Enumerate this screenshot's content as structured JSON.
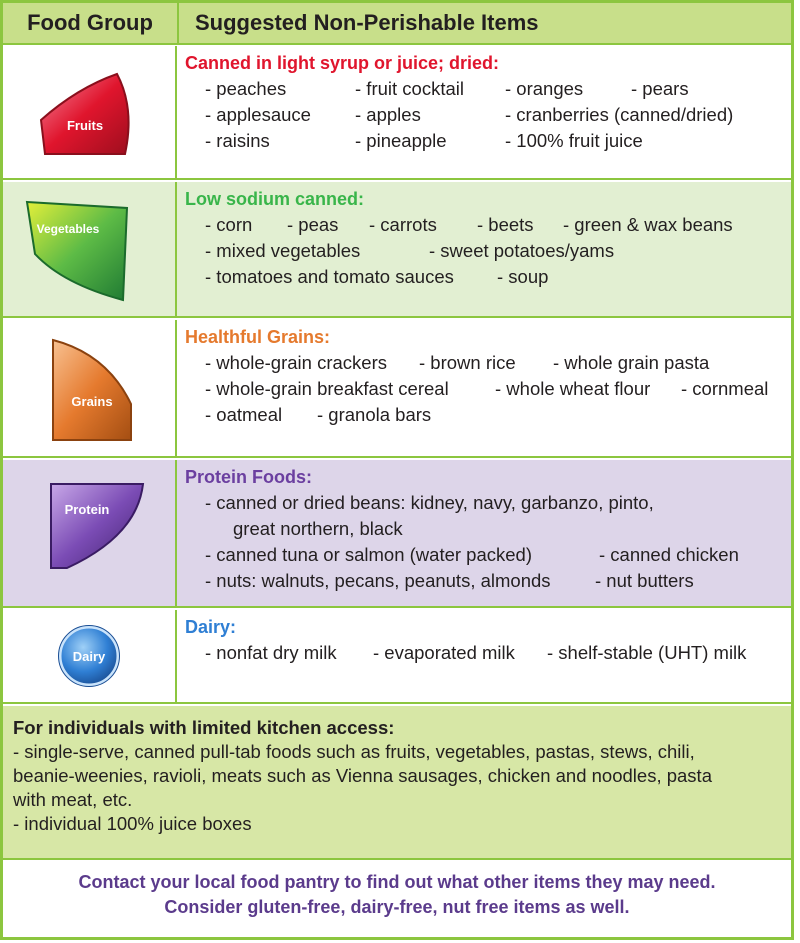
{
  "header": {
    "col1": "Food Group",
    "col2": "Suggested Non-Perishable Items"
  },
  "colors": {
    "border": "#8cc63f",
    "header_bg": "#c8df8a",
    "fruits": "#e0152d",
    "vegetables": "#39b54a",
    "grains": "#e57a2e",
    "protein": "#6b3fa0",
    "dairy": "#2f7fd4",
    "contact": "#5b3b8c"
  },
  "groups": [
    {
      "id": "fruits",
      "icon_label": "Fruits",
      "icon": "fruits-icon",
      "title": "Canned in light syrup or juice; dried:",
      "lines": [
        [
          "- peaches",
          "- fruit cocktail",
          "- oranges",
          "- pears"
        ],
        [
          "- applesauce",
          "- apples",
          "- cranberries (canned/dried)"
        ],
        [
          "- raisins",
          "- pineapple",
          "- 100% fruit juice"
        ]
      ]
    },
    {
      "id": "vegetables",
      "icon_label": "Vegetables",
      "icon": "vegetables-icon",
      "title": "Low sodium canned:",
      "lines": [
        [
          "- corn",
          "- peas",
          "- carrots",
          "- beets",
          "- green & wax beans"
        ],
        [
          "- mixed vegetables",
          "- sweet potatoes/yams"
        ],
        [
          "- tomatoes and tomato sauces",
          "- soup"
        ]
      ]
    },
    {
      "id": "grains",
      "icon_label": "Grains",
      "icon": "grains-icon",
      "title": "Healthful Grains:",
      "lines": [
        [
          "- whole-grain crackers",
          "- brown rice",
          "- whole grain pasta"
        ],
        [
          "- whole-grain breakfast cereal",
          "- whole wheat flour",
          "- cornmeal"
        ],
        [
          "- oatmeal",
          "- granola bars"
        ]
      ]
    },
    {
      "id": "protein",
      "icon_label": "Protein",
      "icon": "protein-icon",
      "title": "Protein Foods:",
      "lines": [
        [
          "- canned or dried beans:  kidney, navy, garbanzo, pinto,"
        ],
        [
          "great northern, black"
        ],
        [
          "- canned tuna or salmon (water packed)",
          "- canned chicken"
        ],
        [
          "- nuts:  walnuts, pecans, peanuts, almonds",
          "- nut butters"
        ]
      ]
    },
    {
      "id": "dairy",
      "icon_label": "Dairy",
      "icon": "dairy-icon",
      "title": "Dairy:",
      "lines": [
        [
          "- nonfat dry milk",
          "- evaporated milk",
          "- shelf-stable (UHT) milk"
        ]
      ]
    }
  ],
  "limited": {
    "title": "For individuals with limited kitchen access:",
    "lines": [
      "- single-serve, canned pull-tab foods such as fruits, vegetables, pastas, stews, chili,",
      "beanie-weenies, ravioli, meats such as Vienna sausages, chicken and noodles, pasta",
      "with meat, etc.",
      "- individual 100% juice boxes"
    ]
  },
  "contact": {
    "line1": "Contact your local food pantry to find out what other items they may need.",
    "line2": "Consider gluten-free, dairy-free, nut free items as well."
  }
}
